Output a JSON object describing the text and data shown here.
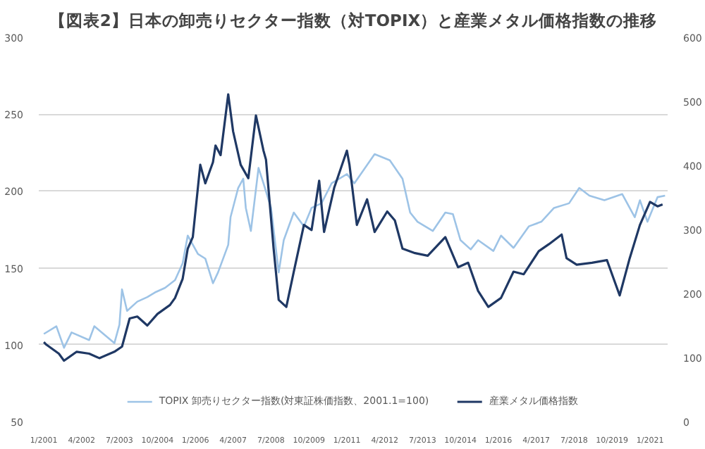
{
  "chart_data": {
    "type": "line",
    "title": "【図表2】日本の卸売りセクター指数（対TOPIX）と産業メタル価格指数の推移",
    "xlim": [
      "2000-11",
      "2021-08"
    ],
    "xticks": [
      {
        "value": "2001-01",
        "label": "1/2001"
      },
      {
        "value": "2002-04",
        "label": "4/2002"
      },
      {
        "value": "2003-07",
        "label": "7/2003"
      },
      {
        "value": "2004-10",
        "label": "10/2004"
      },
      {
        "value": "2006-01",
        "label": "1/2006"
      },
      {
        "value": "2007-04",
        "label": "4/2007"
      },
      {
        "value": "2008-07",
        "label": "7/2008"
      },
      {
        "value": "2009-10",
        "label": "10/2009"
      },
      {
        "value": "2011-01",
        "label": "1/2011"
      },
      {
        "value": "2012-04",
        "label": "4/2012"
      },
      {
        "value": "2013-07",
        "label": "7/2013"
      },
      {
        "value": "2014-10",
        "label": "10/2014"
      },
      {
        "value": "2016-01",
        "label": "1/2016"
      },
      {
        "value": "2017-04",
        "label": "4/2017"
      },
      {
        "value": "2018-07",
        "label": "7/2018"
      },
      {
        "value": "2019-10",
        "label": "10/2019"
      },
      {
        "value": "2021-01",
        "label": "1/2021"
      }
    ],
    "ylim": [
      50,
      300
    ],
    "yticks": [
      50,
      100,
      150,
      200,
      250,
      300
    ],
    "y2lim": [
      0,
      600
    ],
    "y2ticks": [
      0,
      100,
      200,
      300,
      400,
      500,
      600
    ],
    "grid": "y",
    "legend": "bottom",
    "series": [
      {
        "name": "TOPIX 卸売りセクター指数(対東証株価指数、2001.1=100)",
        "color": "#9dc3e6",
        "x": [
          "2001-01",
          "2001-06",
          "2001-09",
          "2001-12",
          "2002-07",
          "2002-09",
          "2003-05",
          "2003-07",
          "2003-08",
          "2003-10",
          "2004-02",
          "2004-06",
          "2004-09",
          "2005-01",
          "2005-05",
          "2005-08",
          "2005-10",
          "2006-02",
          "2006-05",
          "2006-08",
          "2006-10",
          "2007-02",
          "2007-03",
          "2007-06",
          "2007-08",
          "2007-09",
          "2007-11",
          "2008-02",
          "2008-04",
          "2008-07",
          "2008-10",
          "2008-12",
          "2009-04",
          "2009-08",
          "2009-11",
          "2010-03",
          "2010-07",
          "2011-01",
          "2011-04",
          "2011-12",
          "2012-06",
          "2012-11",
          "2013-02",
          "2013-05",
          "2013-11",
          "2014-04",
          "2014-07",
          "2014-10",
          "2015-02",
          "2015-05",
          "2015-11",
          "2016-02",
          "2016-07",
          "2017-01",
          "2017-06",
          "2017-11",
          "2018-05",
          "2018-09",
          "2019-01",
          "2019-07",
          "2020-02",
          "2020-07",
          "2020-09",
          "2020-12",
          "2021-04",
          "2021-07"
        ],
        "values": [
          107,
          112,
          98,
          108,
          103,
          112,
          101,
          113,
          136,
          122,
          128,
          131,
          134,
          137,
          142,
          153,
          171,
          159,
          156,
          140,
          147,
          165,
          183,
          202,
          208,
          189,
          174,
          215,
          205,
          189,
          147,
          168,
          186,
          177,
          189,
          192,
          205,
          211,
          205,
          224,
          220,
          208,
          186,
          180,
          174,
          186,
          185,
          168,
          162,
          168,
          161,
          171,
          163,
          177,
          180,
          189,
          192,
          202,
          197,
          194,
          198,
          183,
          194,
          180,
          196,
          197
        ]
      },
      {
        "name": "産業メタル価格指数",
        "color": "#1f3864",
        "axis": "y2",
        "x": [
          "2001-01",
          "2001-02",
          "2001-07",
          "2001-09",
          "2002-02",
          "2002-07",
          "2002-11",
          "2003-05",
          "2003-08",
          "2003-11",
          "2004-02",
          "2004-06",
          "2004-10",
          "2005-03",
          "2005-05",
          "2005-08",
          "2005-10",
          "2005-12",
          "2006-03",
          "2006-05",
          "2006-08",
          "2006-09",
          "2006-11",
          "2007-02",
          "2007-04",
          "2007-07",
          "2007-10",
          "2008-01",
          "2008-04",
          "2008-05",
          "2008-08",
          "2008-10",
          "2009-01",
          "2009-04",
          "2009-08",
          "2009-11",
          "2010-02",
          "2010-04",
          "2010-08",
          "2011-01",
          "2011-02",
          "2011-05",
          "2011-09",
          "2011-12",
          "2012-05",
          "2012-08",
          "2012-11",
          "2013-04",
          "2013-09",
          "2014-04",
          "2014-09",
          "2015-01",
          "2015-05",
          "2015-09",
          "2016-02",
          "2016-07",
          "2016-11",
          "2017-05",
          "2017-09",
          "2018-02",
          "2018-04",
          "2018-08",
          "2019-02",
          "2019-08",
          "2020-01",
          "2020-05",
          "2020-09",
          "2021-01",
          "2021-04",
          "2021-06"
        ],
        "values": [
          124,
          120,
          106,
          95,
          109,
          106,
          99,
          109,
          117,
          161,
          164,
          150,
          168,
          182,
          193,
          223,
          270,
          288,
          401,
          372,
          405,
          431,
          416,
          511,
          453,
          401,
          380,
          478,
          423,
          409,
          270,
          190,
          179,
          234,
          307,
          299,
          376,
          296,
          365,
          423,
          401,
          307,
          347,
          296,
          328,
          314,
          270,
          263,
          259,
          288,
          241,
          248,
          204,
          179,
          193,
          234,
          230,
          266,
          277,
          292,
          255,
          245,
          248,
          252,
          197,
          255,
          307,
          343,
          336,
          339
        ]
      }
    ]
  }
}
